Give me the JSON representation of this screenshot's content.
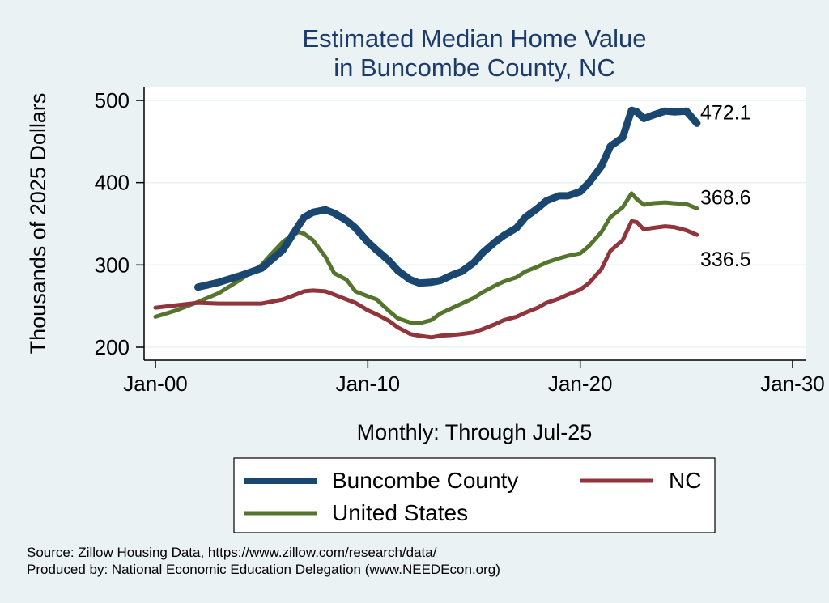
{
  "chart_data": {
    "type": "line",
    "title": [
      "Estimated Median Home Value",
      "in Buncombe County, NC"
    ],
    "ylabel": "Thousands of 2025 Dollars",
    "xlabel": "Monthly: Through Jul-25",
    "x_ticks": [
      "Jan-00",
      "Jan-10",
      "Jan-20",
      "Jan-30"
    ],
    "x_range": [
      "2000-01",
      "2030-01"
    ],
    "y_ticks": [
      200,
      300,
      400,
      500
    ],
    "ylim": [
      200,
      500
    ],
    "grid": true,
    "legend": {
      "position": "bottom"
    },
    "series": [
      {
        "name": "Buncombe County",
        "color": "#1a476f",
        "end_label": "472.1",
        "points": [
          [
            "2002-01",
            273
          ],
          [
            "2003-01",
            279
          ],
          [
            "2004-01",
            287
          ],
          [
            "2005-01",
            296
          ],
          [
            "2006-01",
            318
          ],
          [
            "2006-06",
            335
          ],
          [
            "2007-01",
            358
          ],
          [
            "2007-06",
            364
          ],
          [
            "2008-01",
            367
          ],
          [
            "2008-06",
            363
          ],
          [
            "2009-01",
            354
          ],
          [
            "2009-06",
            345
          ],
          [
            "2010-01",
            328
          ],
          [
            "2010-06",
            318
          ],
          [
            "2011-01",
            305
          ],
          [
            "2011-06",
            293
          ],
          [
            "2012-01",
            282
          ],
          [
            "2012-06",
            278
          ],
          [
            "2013-01",
            279
          ],
          [
            "2013-06",
            281
          ],
          [
            "2014-01",
            288
          ],
          [
            "2014-06",
            292
          ],
          [
            "2015-01",
            303
          ],
          [
            "2015-06",
            315
          ],
          [
            "2016-01",
            328
          ],
          [
            "2016-06",
            336
          ],
          [
            "2017-01",
            345
          ],
          [
            "2017-06",
            358
          ],
          [
            "2018-01",
            369
          ],
          [
            "2018-06",
            378
          ],
          [
            "2019-01",
            384
          ],
          [
            "2019-06",
            384
          ],
          [
            "2020-01",
            389
          ],
          [
            "2020-06",
            400
          ],
          [
            "2021-01",
            420
          ],
          [
            "2021-06",
            444
          ],
          [
            "2022-01",
            455
          ],
          [
            "2022-06",
            488
          ],
          [
            "2022-09",
            486
          ],
          [
            "2023-01",
            478
          ],
          [
            "2023-06",
            482
          ],
          [
            "2024-01",
            487
          ],
          [
            "2024-06",
            486
          ],
          [
            "2025-01",
            487
          ],
          [
            "2025-07",
            472.1
          ]
        ]
      },
      {
        "name": "NC",
        "color": "#90353b",
        "end_label": "336.5",
        "points": [
          [
            "2000-01",
            248
          ],
          [
            "2001-01",
            251
          ],
          [
            "2002-01",
            254
          ],
          [
            "2003-01",
            253
          ],
          [
            "2004-01",
            253
          ],
          [
            "2005-01",
            253
          ],
          [
            "2006-01",
            258
          ],
          [
            "2006-06",
            262
          ],
          [
            "2007-01",
            268
          ],
          [
            "2007-06",
            269
          ],
          [
            "2008-01",
            268
          ],
          [
            "2008-06",
            264
          ],
          [
            "2009-01",
            258
          ],
          [
            "2009-06",
            254
          ],
          [
            "2010-01",
            245
          ],
          [
            "2010-06",
            240
          ],
          [
            "2011-01",
            232
          ],
          [
            "2011-06",
            224
          ],
          [
            "2012-01",
            216
          ],
          [
            "2012-06",
            214
          ],
          [
            "2013-01",
            212
          ],
          [
            "2013-06",
            214
          ],
          [
            "2014-01",
            215
          ],
          [
            "2014-06",
            216
          ],
          [
            "2015-01",
            218
          ],
          [
            "2015-06",
            222
          ],
          [
            "2016-01",
            228
          ],
          [
            "2016-06",
            233
          ],
          [
            "2017-01",
            237
          ],
          [
            "2017-06",
            242
          ],
          [
            "2018-01",
            248
          ],
          [
            "2018-06",
            254
          ],
          [
            "2019-01",
            259
          ],
          [
            "2019-06",
            264
          ],
          [
            "2020-01",
            270
          ],
          [
            "2020-06",
            278
          ],
          [
            "2021-01",
            295
          ],
          [
            "2021-06",
            317
          ],
          [
            "2022-01",
            330
          ],
          [
            "2022-06",
            353
          ],
          [
            "2022-09",
            352
          ],
          [
            "2023-01",
            343
          ],
          [
            "2023-06",
            345
          ],
          [
            "2024-01",
            347
          ],
          [
            "2024-06",
            346
          ],
          [
            "2025-01",
            342
          ],
          [
            "2025-07",
            336.5
          ]
        ]
      },
      {
        "name": "United States",
        "color": "#55752f",
        "end_label": "368.6",
        "points": [
          [
            "2000-01",
            237
          ],
          [
            "2001-01",
            245
          ],
          [
            "2002-01",
            255
          ],
          [
            "2003-01",
            266
          ],
          [
            "2004-01",
            282
          ],
          [
            "2005-01",
            300
          ],
          [
            "2005-06",
            312
          ],
          [
            "2006-01",
            328
          ],
          [
            "2006-06",
            336
          ],
          [
            "2006-10",
            340
          ],
          [
            "2007-01",
            338
          ],
          [
            "2007-06",
            330
          ],
          [
            "2008-01",
            310
          ],
          [
            "2008-06",
            290
          ],
          [
            "2009-01",
            282
          ],
          [
            "2009-06",
            268
          ],
          [
            "2010-01",
            262
          ],
          [
            "2010-06",
            258
          ],
          [
            "2011-01",
            244
          ],
          [
            "2011-06",
            235
          ],
          [
            "2012-01",
            230
          ],
          [
            "2012-06",
            229
          ],
          [
            "2013-01",
            233
          ],
          [
            "2013-06",
            241
          ],
          [
            "2014-01",
            248
          ],
          [
            "2014-06",
            253
          ],
          [
            "2015-01",
            260
          ],
          [
            "2015-06",
            267
          ],
          [
            "2016-01",
            275
          ],
          [
            "2016-06",
            280
          ],
          [
            "2017-01",
            285
          ],
          [
            "2017-06",
            292
          ],
          [
            "2018-01",
            298
          ],
          [
            "2018-06",
            303
          ],
          [
            "2019-01",
            308
          ],
          [
            "2019-06",
            311
          ],
          [
            "2020-01",
            314
          ],
          [
            "2020-06",
            323
          ],
          [
            "2021-01",
            340
          ],
          [
            "2021-06",
            358
          ],
          [
            "2022-01",
            370
          ],
          [
            "2022-06",
            387
          ],
          [
            "2022-09",
            380
          ],
          [
            "2023-01",
            373
          ],
          [
            "2023-06",
            375
          ],
          [
            "2024-01",
            376
          ],
          [
            "2024-06",
            375
          ],
          [
            "2025-01",
            374
          ],
          [
            "2025-07",
            368.6
          ]
        ]
      }
    ]
  },
  "footer": {
    "source": "Source: Zillow Housing Data, https://www.zillow.com/research/data/",
    "produced_by": "Produced by: National Economic Education Delegation (www.NEEDEcon.org)"
  }
}
